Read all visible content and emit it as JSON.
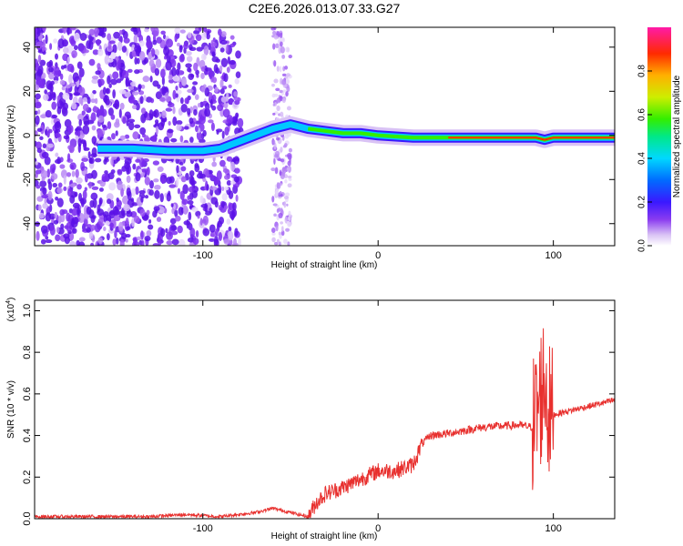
{
  "title": "C2E6.2026.013.07.33.G27",
  "chart_data": [
    {
      "type": "heatmap",
      "name": "spectrogram",
      "xlabel": "Height of straight line (km)",
      "ylabel": "Frequency (Hz)",
      "xlim": [
        -196,
        135
      ],
      "ylim": [
        -50,
        49
      ],
      "xticks": [
        -100,
        0,
        100
      ],
      "xtick_labels": [
        "-100",
        "0",
        "100"
      ],
      "yticks": [
        -40,
        -20,
        0,
        20,
        40
      ],
      "ytick_labels": [
        "-40",
        "-20",
        "0",
        "20",
        "40"
      ],
      "colorbar": {
        "label": "Normalized spectral amplitude",
        "range": [
          0,
          1
        ],
        "ticks": [
          0.0,
          0.2,
          0.4,
          0.6,
          0.8
        ],
        "tick_labels": [
          "0.0",
          "0.2",
          "0.4",
          "0.6",
          "0.8"
        ]
      },
      "ridge": {
        "x": [
          -160,
          -140,
          -120,
          -100,
          -90,
          -80,
          -70,
          -60,
          -50,
          -40,
          -30,
          -20,
          -10,
          0,
          20,
          40,
          60,
          80,
          90,
          95,
          100,
          110,
          120,
          135
        ],
        "y": [
          -6,
          -6,
          -7,
          -7,
          -6,
          -3,
          0,
          3,
          5,
          3,
          2,
          1,
          1,
          0,
          -1,
          -1,
          -1,
          -1,
          -1,
          -2,
          -1,
          -1,
          -1,
          -1
        ]
      }
    },
    {
      "type": "line",
      "name": "snr",
      "xlabel": "Height of straight line (km)",
      "ylabel": "SNR (10 * v/v)",
      "y_multiplier": "(x10",
      "y_multiplier_exp": "4",
      "xlim": [
        -196,
        135
      ],
      "ylim": [
        0,
        1.05
      ],
      "xticks": [
        -100,
        0,
        100
      ],
      "xtick_labels": [
        "-100",
        "0",
        "100"
      ],
      "yticks": [
        0.0,
        0.2,
        0.4,
        0.6,
        0.8,
        1.0
      ],
      "ytick_labels": [
        "0.0",
        "0.2",
        "0.4",
        "0.6",
        "0.8",
        "1.0"
      ],
      "color": "#e8302e",
      "series": [
        {
          "x": [
            -196,
            -160,
            -130,
            -110,
            -90,
            -70,
            -60,
            -40,
            -35,
            -30,
            -20,
            -10,
            0,
            10,
            20,
            25,
            30,
            40,
            60,
            80,
            88,
            92,
            95,
            98,
            100,
            110,
            120,
            135
          ],
          "y": [
            0.01,
            0.01,
            0.01,
            0.02,
            0.01,
            0.03,
            0.05,
            0.01,
            0.08,
            0.12,
            0.15,
            0.19,
            0.23,
            0.23,
            0.26,
            0.36,
            0.4,
            0.41,
            0.44,
            0.45,
            0.44,
            0.55,
            0.68,
            0.48,
            0.5,
            0.52,
            0.54,
            0.57
          ]
        }
      ]
    }
  ]
}
